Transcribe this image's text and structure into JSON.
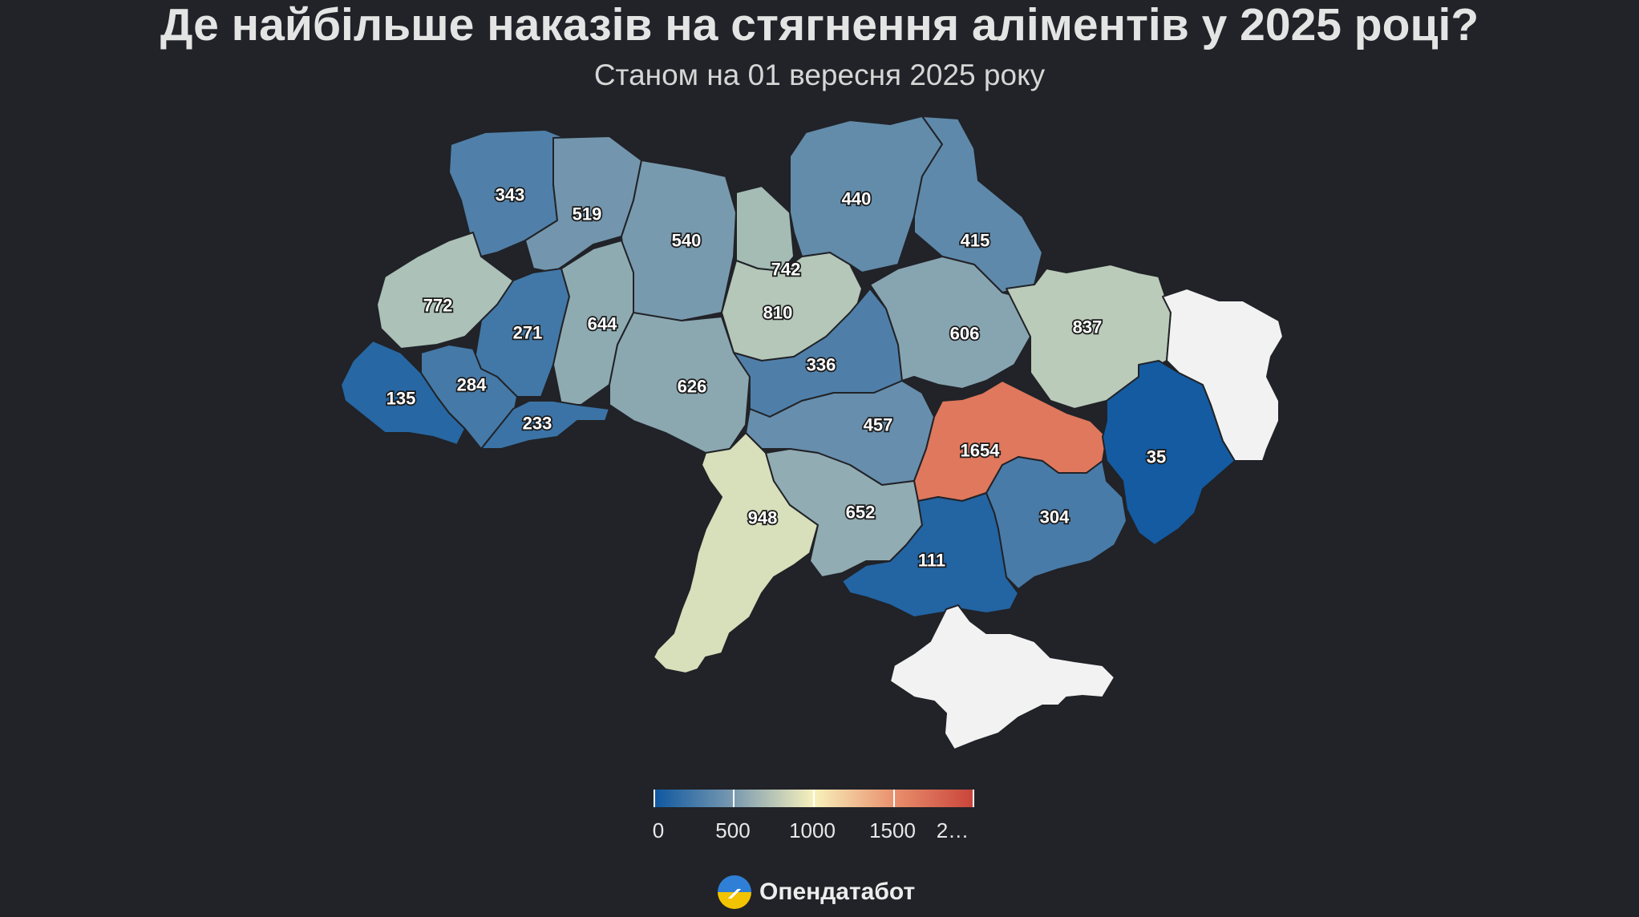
{
  "title": "Де найбільше наказів на стягнення аліментів у 2025 році?",
  "subtitle": "Станом на 01 вересня 2025 року",
  "regions": [
    {
      "name": "volyn",
      "value": "343"
    },
    {
      "name": "rivne",
      "value": "519"
    },
    {
      "name": "zhytomyr",
      "value": "540"
    },
    {
      "name": "kyiv-oblast",
      "value": "742"
    },
    {
      "name": "kyiv-oblast-south",
      "value": "810"
    },
    {
      "name": "chernihiv",
      "value": "440"
    },
    {
      "name": "sumy",
      "value": "415"
    },
    {
      "name": "lviv",
      "value": "772"
    },
    {
      "name": "ternopil",
      "value": "271"
    },
    {
      "name": "khmelnytskyi",
      "value": "644"
    },
    {
      "name": "vinnytsia",
      "value": "626"
    },
    {
      "name": "cherkasy",
      "value": "336"
    },
    {
      "name": "poltava",
      "value": "606"
    },
    {
      "name": "kharkiv",
      "value": "837"
    },
    {
      "name": "zakarpattia",
      "value": "135"
    },
    {
      "name": "ivano-frankivsk",
      "value": "284"
    },
    {
      "name": "chernivtsi",
      "value": "233"
    },
    {
      "name": "kirovohrad",
      "value": "457"
    },
    {
      "name": "dnipropetrovsk",
      "value": "1654"
    },
    {
      "name": "donetsk",
      "value": "35"
    },
    {
      "name": "odesa",
      "value": "948"
    },
    {
      "name": "mykolaiv",
      "value": "652"
    },
    {
      "name": "zaporizhzhia",
      "value": "304"
    },
    {
      "name": "kherson",
      "value": "111"
    }
  ],
  "no_data_regions": [
    "luhansk",
    "crimea"
  ],
  "colors": {
    "background": "#212328",
    "no_data": "#f2f2f2",
    "scale": [
      "#0d57a0",
      "#6f93ad",
      "#c8d6bb",
      "#f7f1bb",
      "#e9906d",
      "#c9433a"
    ]
  },
  "legend": {
    "ticks": [
      "0",
      "500",
      "1000",
      "1500",
      "2…"
    ]
  },
  "brand": {
    "name": "Опендатабот"
  }
}
